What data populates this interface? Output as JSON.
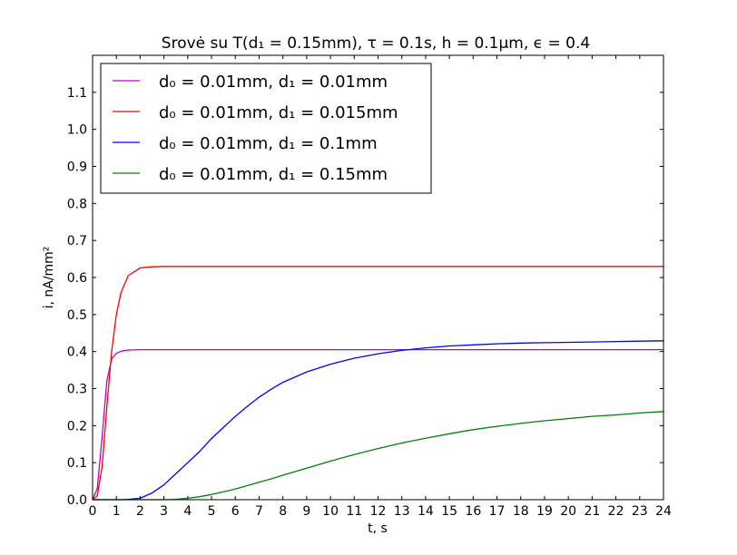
{
  "chart_data": {
    "type": "line",
    "title": "Srovė su T(d₁ = 0.15mm), τ = 0.1s, h = 0.1μm, ϵ = 0.4",
    "xlabel": "t, s",
    "ylabel": "i, nA/mm²",
    "xlim": [
      0,
      24
    ],
    "ylim": [
      0,
      1.2
    ],
    "x_ticks": [
      "0",
      "1",
      "2",
      "3",
      "4",
      "5",
      "6",
      "7",
      "8",
      "9",
      "10",
      "11",
      "12",
      "13",
      "14",
      "15",
      "16",
      "17",
      "18",
      "19",
      "20",
      "21",
      "22",
      "23",
      "24"
    ],
    "y_ticks": [
      "0.0",
      "0.1",
      "0.2",
      "0.3",
      "0.4",
      "0.5",
      "0.6",
      "0.7",
      "0.8",
      "0.9",
      "1.0",
      "1.1"
    ],
    "grid": false,
    "legend_position": "top-left",
    "x": [
      0,
      0.2,
      0.4,
      0.6,
      0.8,
      1.0,
      1.2,
      1.5,
      2.0,
      2.5,
      3.0,
      3.5,
      4.0,
      4.5,
      5.0,
      5.5,
      6.0,
      6.5,
      7.0,
      7.5,
      8.0,
      9.0,
      10.0,
      11.0,
      12.0,
      13.0,
      14.0,
      15.0,
      16.0,
      17.0,
      18.0,
      19.0,
      20.0,
      21.0,
      22.0,
      23.0,
      24.0
    ],
    "series": [
      {
        "name": "d₀ = 0.01mm, d₁ = 0.01mm",
        "color": "#bf00bf",
        "values": [
          0,
          0.03,
          0.17,
          0.32,
          0.38,
          0.395,
          0.401,
          0.404,
          0.405,
          0.405,
          0.405,
          0.405,
          0.405,
          0.405,
          0.405,
          0.405,
          0.405,
          0.405,
          0.405,
          0.405,
          0.405,
          0.405,
          0.405,
          0.405,
          0.405,
          0.405,
          0.405,
          0.405,
          0.405,
          0.405,
          0.405,
          0.405,
          0.405,
          0.405,
          0.405,
          0.405,
          0.405
        ]
      },
      {
        "name": "d₀ = 0.01mm, d₁ = 0.015mm",
        "color": "#ff0000",
        "values": [
          0,
          0.01,
          0.09,
          0.25,
          0.4,
          0.5,
          0.56,
          0.605,
          0.626,
          0.629,
          0.63,
          0.63,
          0.63,
          0.63,
          0.63,
          0.63,
          0.63,
          0.63,
          0.63,
          0.63,
          0.63,
          0.63,
          0.63,
          0.63,
          0.63,
          0.63,
          0.63,
          0.63,
          0.63,
          0.63,
          0.63,
          0.63,
          0.63,
          0.63,
          0.63,
          0.63,
          0.63
        ]
      },
      {
        "name": "d₀ = 0.01mm, d₁ = 0.1mm",
        "color": "#0000ff",
        "values": [
          0,
          0,
          0,
          0,
          0,
          0,
          0,
          0.001,
          0.004,
          0.018,
          0.04,
          0.07,
          0.1,
          0.13,
          0.165,
          0.195,
          0.225,
          0.252,
          0.277,
          0.298,
          0.317,
          0.345,
          0.366,
          0.382,
          0.394,
          0.403,
          0.41,
          0.415,
          0.418,
          0.421,
          0.423,
          0.424,
          0.425,
          0.426,
          0.427,
          0.428,
          0.429
        ]
      },
      {
        "name": "d₀ = 0.01mm, d₁ = 0.15mm",
        "color": "#008000",
        "values": [
          0,
          0,
          0,
          0,
          0,
          0,
          0,
          0,
          0,
          0,
          0,
          0.001,
          0.004,
          0.008,
          0.014,
          0.021,
          0.029,
          0.038,
          0.047,
          0.056,
          0.066,
          0.085,
          0.104,
          0.122,
          0.138,
          0.153,
          0.166,
          0.178,
          0.189,
          0.198,
          0.206,
          0.213,
          0.219,
          0.225,
          0.229,
          0.234,
          0.238
        ]
      }
    ]
  }
}
